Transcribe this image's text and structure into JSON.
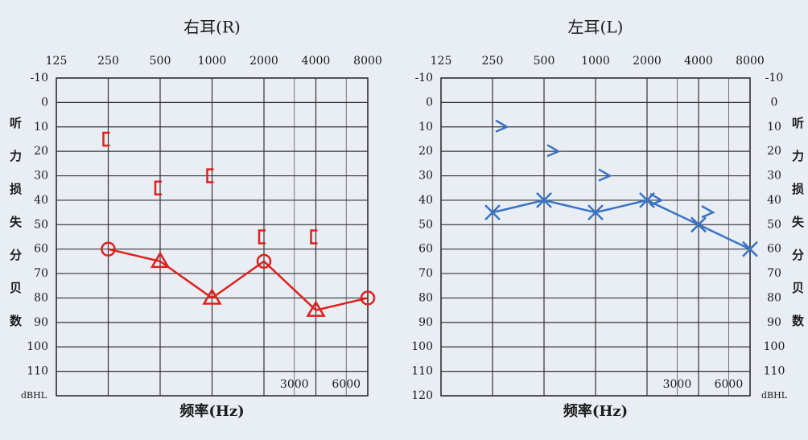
{
  "chart_data": [
    {
      "type": "line",
      "title": "右耳(R)",
      "xlabel": "频率(Hz)",
      "ylabel": "听力损失分贝数",
      "ylabel_side": "left",
      "y_unit": "dBHL",
      "y_unit_side": "left",
      "xscale": "log",
      "xlim": [
        125,
        8000
      ],
      "xticks": [
        125,
        250,
        500,
        1000,
        2000,
        4000,
        8000
      ],
      "minor_xticks": [
        3000,
        6000
      ],
      "ylim": [
        -10,
        120
      ],
      "y_inverted": true,
      "yticks": [
        -10,
        0,
        10,
        20,
        30,
        40,
        50,
        60,
        70,
        80,
        90,
        100,
        110
      ],
      "grid": true,
      "series": [
        {
          "color": "#e0201c",
          "line": true,
          "markers": [
            "circle",
            "triangle",
            "triangle",
            "circle",
            "triangle",
            "circle"
          ],
          "x": [
            250,
            500,
            1000,
            2000,
            4000,
            8000
          ],
          "values": [
            60,
            65,
            80,
            65,
            85,
            80
          ]
        },
        {
          "color": "#e0201c",
          "line": false,
          "marker": "bracket",
          "x": [
            250,
            500,
            1000,
            2000,
            4000
          ],
          "values": [
            15,
            35,
            30,
            55,
            55
          ]
        }
      ]
    },
    {
      "type": "line",
      "title": "左耳(L)",
      "xlabel": "频率(Hz)",
      "ylabel": "听力损失分贝数",
      "ylabel_side": "right",
      "y_unit": "dBHL",
      "y_unit_side": "right",
      "xscale": "log",
      "xlim": [
        125,
        8000
      ],
      "xticks": [
        125,
        250,
        500,
        1000,
        2000,
        4000,
        8000
      ],
      "minor_xticks": [
        3000,
        6000
      ],
      "ylim": [
        -10,
        120
      ],
      "y_inverted": true,
      "yticks": [
        -10,
        0,
        10,
        20,
        30,
        40,
        50,
        60,
        70,
        80,
        90,
        100,
        110,
        120
      ],
      "yticks_right": [
        -10,
        0,
        10,
        20,
        30,
        40,
        50,
        60,
        70,
        80,
        90,
        100,
        110
      ],
      "grid": true,
      "series": [
        {
          "color": "#3a73c4",
          "line": true,
          "marker": "x",
          "x": [
            250,
            500,
            1000,
            2000,
            4000,
            8000
          ],
          "values": [
            45,
            40,
            45,
            40,
            50,
            60
          ]
        },
        {
          "color": "#3a73c4",
          "line": false,
          "marker": "chevron",
          "x": [
            250,
            500,
            1000,
            2000,
            4000
          ],
          "values": [
            10,
            20,
            30,
            40,
            45
          ]
        }
      ]
    }
  ]
}
